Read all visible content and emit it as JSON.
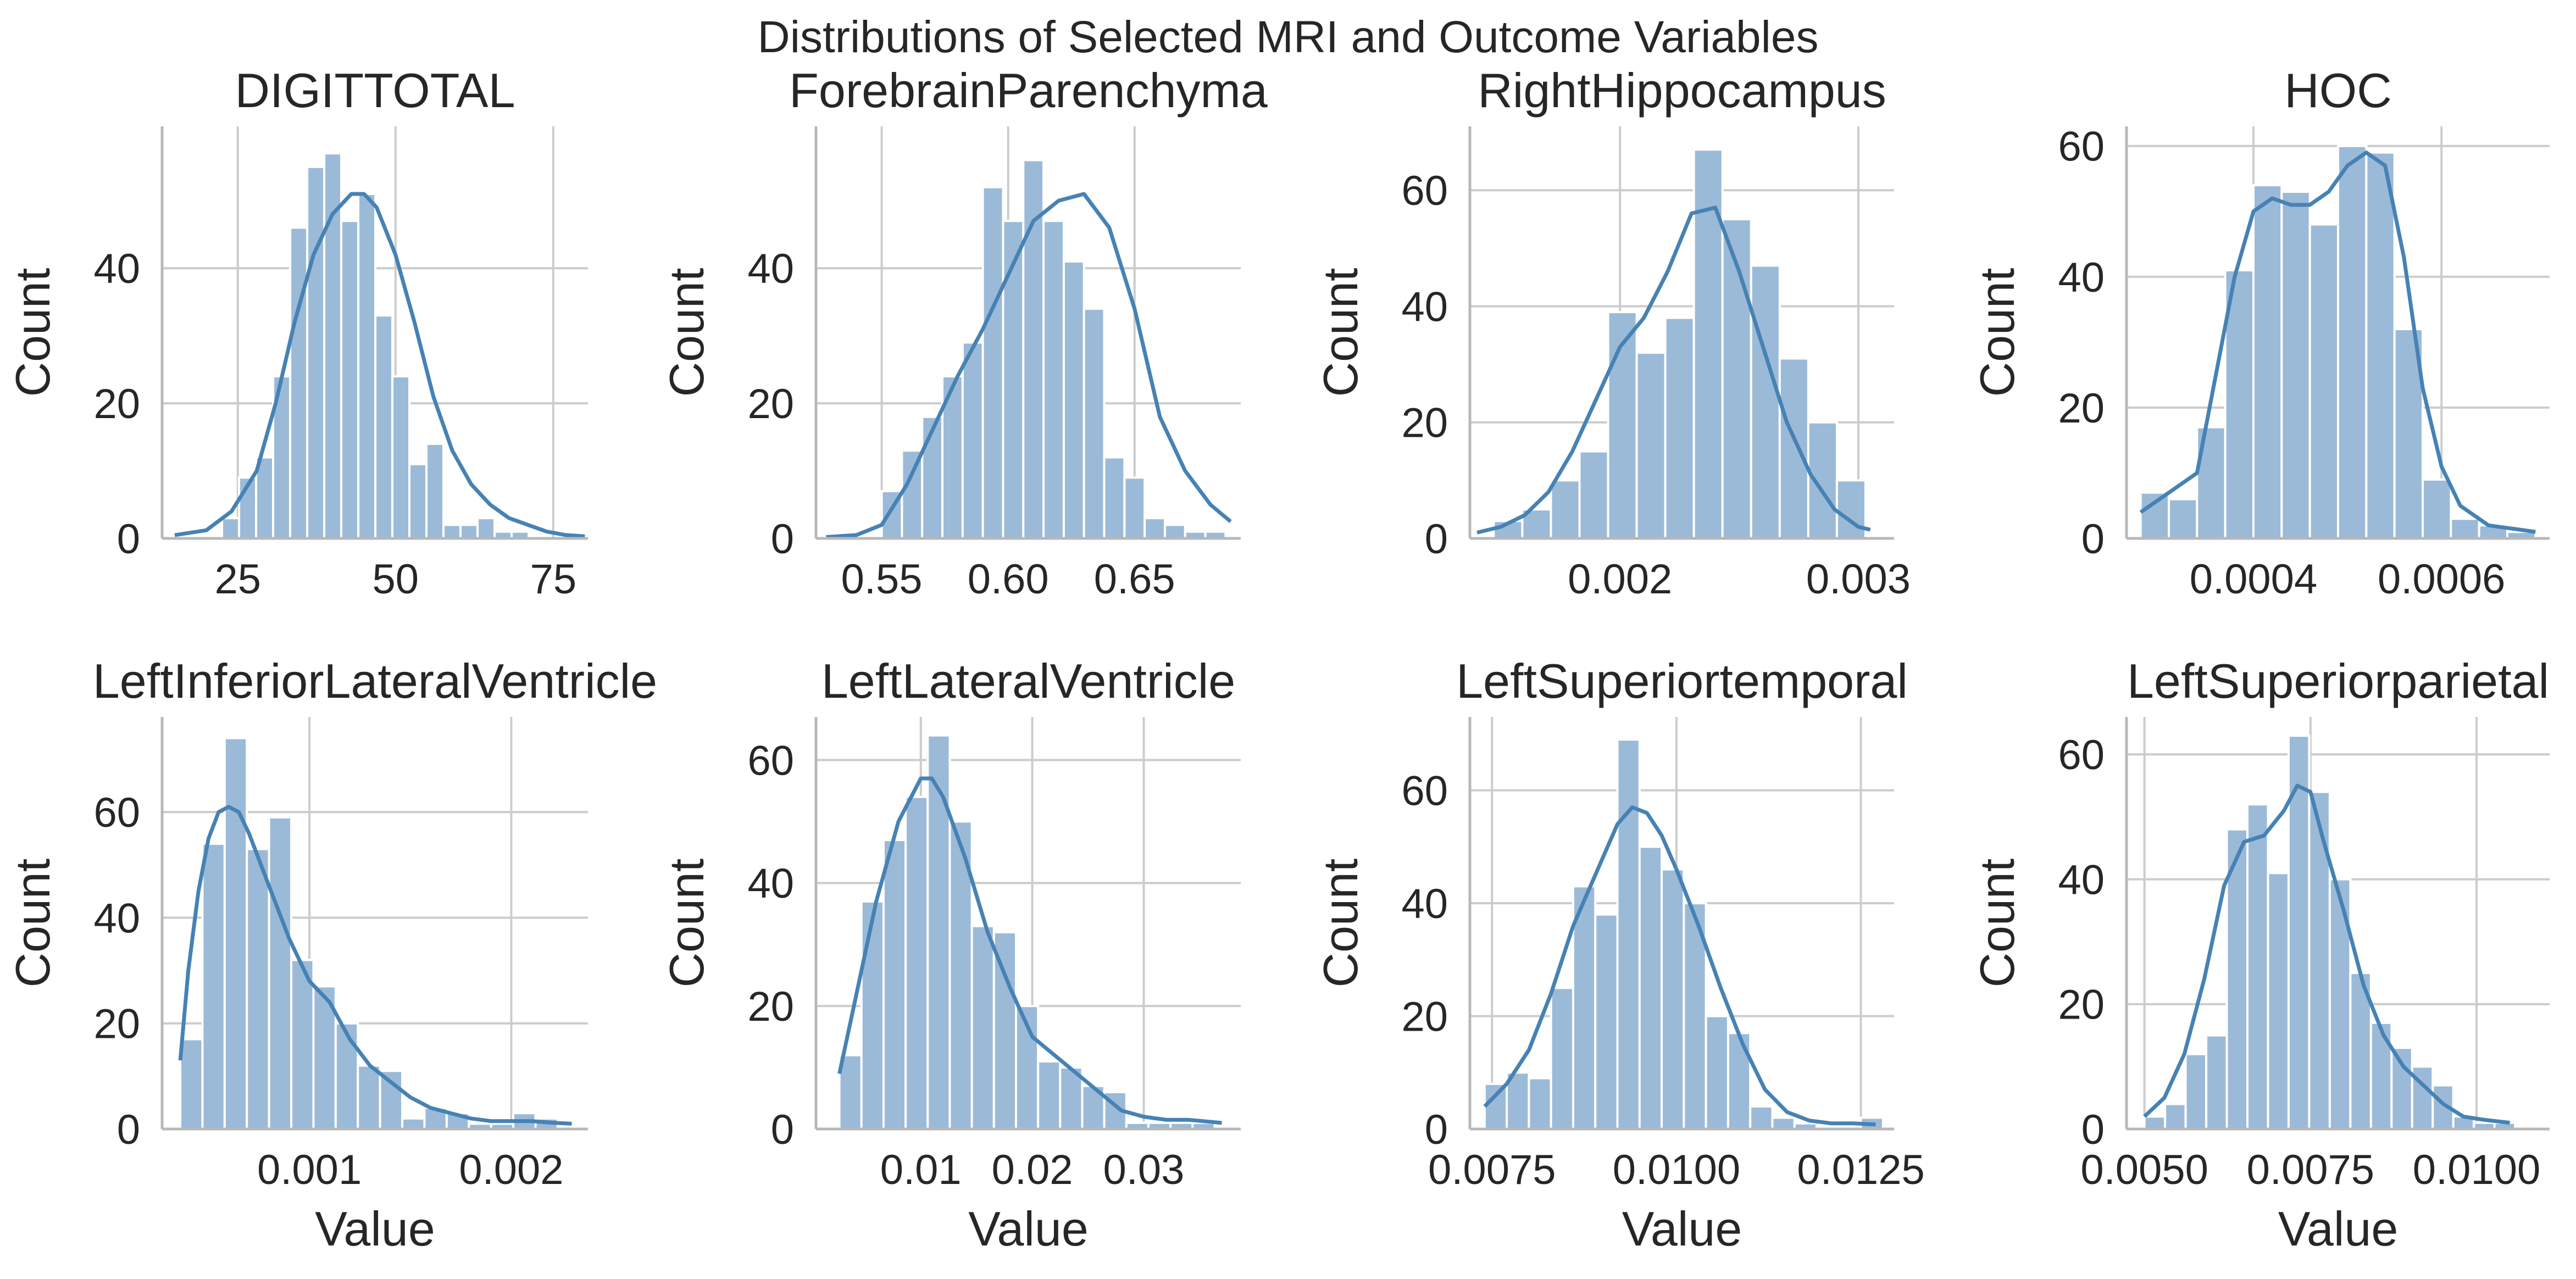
{
  "figure": {
    "title": "Distributions of Selected MRI and Outcome Variables",
    "bar_color": "#9bbad8",
    "kde_color": "#4682b4"
  },
  "chart_data": [
    {
      "type": "histogram",
      "title": "DIGITTOTAL",
      "xlabel": "",
      "ylabel": "Count",
      "xlim": [
        13,
        80.5
      ],
      "ylim": [
        0,
        61
      ],
      "xticks": [
        25,
        50,
        75
      ],
      "xtick_labels": [
        "25",
        "50",
        "75"
      ],
      "yticks": [
        0,
        20,
        40
      ],
      "ytick_labels": [
        "0",
        "20",
        "40"
      ],
      "grid": true,
      "bin_edges": [
        22.5,
        25.2,
        27.9,
        30.6,
        33.3,
        36.0,
        38.7,
        41.4,
        44.1,
        46.8,
        49.5,
        52.2,
        54.9,
        57.6,
        60.3,
        63.0,
        65.7,
        68.4,
        71.1
      ],
      "counts": [
        3,
        9,
        12,
        24,
        46,
        55,
        57,
        47,
        51,
        33,
        24,
        11,
        14,
        2,
        2,
        3,
        1,
        1
      ],
      "kde": {
        "x": [
          15,
          20,
          24,
          28,
          31,
          34,
          37,
          40,
          43,
          45,
          47,
          50,
          53,
          56,
          59,
          62,
          65,
          68,
          71,
          74,
          77,
          80
        ],
        "y": [
          0.5,
          1.2,
          4,
          10,
          20,
          32,
          42,
          48,
          51,
          51,
          49,
          42,
          32,
          21,
          13,
          8,
          5,
          3,
          2,
          1,
          0.5,
          0.3
        ]
      }
    },
    {
      "type": "histogram",
      "title": "ForebrainParenchyma",
      "xlabel": "",
      "ylabel": "Count",
      "xlim": [
        0.524,
        0.692
      ],
      "ylim": [
        0,
        61
      ],
      "xticks": [
        0.55,
        0.6,
        0.65
      ],
      "xtick_labels": [
        "0.55",
        "0.60",
        "0.65"
      ],
      "yticks": [
        0,
        20,
        40
      ],
      "ytick_labels": [
        "0",
        "20",
        "40"
      ],
      "grid": true,
      "bin_edges": [
        0.55,
        0.558,
        0.566,
        0.574,
        0.582,
        0.59,
        0.598,
        0.606,
        0.614,
        0.622,
        0.63,
        0.638,
        0.646,
        0.654,
        0.662,
        0.67,
        0.678,
        0.686
      ],
      "counts": [
        7,
        13,
        18,
        24,
        29,
        52,
        47,
        56,
        47,
        41,
        34,
        12,
        9,
        3,
        2,
        1,
        1
      ],
      "kde": {
        "x": [
          0.528,
          0.54,
          0.55,
          0.56,
          0.57,
          0.58,
          0.59,
          0.6,
          0.61,
          0.62,
          0.63,
          0.64,
          0.65,
          0.66,
          0.67,
          0.68,
          0.688
        ],
        "y": [
          0.2,
          0.5,
          2,
          8,
          16,
          24,
          31,
          39,
          47,
          50,
          51,
          46,
          34,
          18,
          10,
          5,
          2.5
        ]
      }
    },
    {
      "type": "histogram",
      "title": "RightHippocampus",
      "xlabel": "",
      "ylabel": "Count",
      "xlim": [
        0.00137,
        0.00315
      ],
      "ylim": [
        0,
        71
      ],
      "xticks": [
        0.002,
        0.003
      ],
      "xtick_labels": [
        "0.002",
        "0.003"
      ],
      "yticks": [
        0,
        20,
        40,
        60
      ],
      "ytick_labels": [
        "0",
        "20",
        "40",
        "60"
      ],
      "grid": true,
      "bin_edges": [
        0.00147,
        0.00159,
        0.00171,
        0.00183,
        0.00195,
        0.00207,
        0.00219,
        0.00231,
        0.00243,
        0.00255,
        0.00267,
        0.00279,
        0.00291,
        0.00303
      ],
      "counts": [
        3,
        5,
        10,
        15,
        39,
        32,
        38,
        67,
        55,
        47,
        31,
        20,
        10,
        3
      ],
      "kde": {
        "x": [
          0.0014,
          0.0015,
          0.0016,
          0.0017,
          0.0018,
          0.0019,
          0.002,
          0.0021,
          0.0022,
          0.0023,
          0.0024,
          0.0025,
          0.0026,
          0.0027,
          0.0028,
          0.0029,
          0.003,
          0.00305
        ],
        "y": [
          1,
          2,
          4,
          8,
          15,
          24,
          33,
          38,
          46,
          56,
          57,
          46,
          33,
          20,
          11,
          5,
          2,
          1.5
        ]
      }
    },
    {
      "type": "histogram",
      "title": "HOC",
      "xlabel": "",
      "ylabel": "Count",
      "xlim": [
        0.000265,
        0.000715
      ],
      "ylim": [
        0,
        63
      ],
      "xticks": [
        0.0004,
        0.0006
      ],
      "xtick_labels": [
        "0.0004",
        "0.0006"
      ],
      "yticks": [
        0,
        20,
        40,
        60
      ],
      "ytick_labels": [
        "0",
        "20",
        "40",
        "60"
      ],
      "grid": true,
      "bin_edges": [
        0.00028,
        0.00031,
        0.00034,
        0.00037,
        0.0004,
        0.00043,
        0.00046,
        0.00049,
        0.00052,
        0.00055,
        0.00058,
        0.00061,
        0.00064,
        0.00067,
        0.0007
      ],
      "counts": [
        7,
        6,
        17,
        41,
        54,
        53,
        48,
        60,
        59,
        32,
        9,
        3,
        2,
        1
      ],
      "kde": {
        "x": [
          0.00028,
          0.00031,
          0.00034,
          0.00036,
          0.00038,
          0.0004,
          0.00042,
          0.00044,
          0.00046,
          0.00048,
          0.0005,
          0.00052,
          0.00054,
          0.00056,
          0.00058,
          0.0006,
          0.00062,
          0.00065,
          0.0007
        ],
        "y": [
          4,
          7,
          10,
          25,
          40,
          50,
          52,
          51,
          51,
          53,
          57,
          59,
          57,
          43,
          23,
          11,
          5,
          2,
          1
        ]
      }
    },
    {
      "type": "histogram",
      "title": "LeftInferiorLateralVentricle",
      "xlabel": "Value",
      "ylabel": "Count",
      "xlim": [
        0.00027,
        0.00238
      ],
      "ylim": [
        0,
        78
      ],
      "xticks": [
        0.001,
        0.002
      ],
      "xtick_labels": [
        "0.001",
        "0.002"
      ],
      "yticks": [
        0,
        20,
        40,
        60
      ],
      "ytick_labels": [
        "0",
        "20",
        "40",
        "60"
      ],
      "grid": true,
      "bin_edges": [
        0.00036,
        0.00047,
        0.00058,
        0.00069,
        0.0008,
        0.00091,
        0.00102,
        0.00113,
        0.00124,
        0.00135,
        0.00146,
        0.00157,
        0.00168,
        0.00179,
        0.0019,
        0.00201,
        0.00212,
        0.00223
      ],
      "counts": [
        17,
        54,
        74,
        53,
        59,
        32,
        27,
        20,
        12,
        11,
        2,
        4,
        3,
        1,
        1,
        3,
        2
      ],
      "kde": {
        "x": [
          0.00036,
          0.0004,
          0.00045,
          0.0005,
          0.00055,
          0.0006,
          0.00065,
          0.0007,
          0.0008,
          0.0009,
          0.001,
          0.0011,
          0.0012,
          0.0013,
          0.0014,
          0.0015,
          0.0016,
          0.0017,
          0.0018,
          0.0019,
          0.002,
          0.0021,
          0.0022,
          0.0023
        ],
        "y": [
          13,
          30,
          45,
          55,
          60,
          61,
          60,
          56,
          46,
          36,
          28,
          24,
          17,
          12,
          9,
          6,
          4,
          3,
          2,
          1.5,
          1.5,
          1.5,
          1.2,
          1
        ]
      }
    },
    {
      "type": "histogram",
      "title": "LeftLateralVentricle",
      "xlabel": "Value",
      "ylabel": "Count",
      "xlim": [
        0.0006,
        0.0387
      ],
      "ylim": [
        0,
        67
      ],
      "xticks": [
        0.01,
        0.02,
        0.03
      ],
      "xtick_labels": [
        "0.01",
        "0.02",
        "0.03"
      ],
      "yticks": [
        0,
        20,
        40,
        60
      ],
      "ytick_labels": [
        "0",
        "20",
        "40",
        "60"
      ],
      "grid": true,
      "bin_edges": [
        0.0027,
        0.00468,
        0.00666,
        0.00864,
        0.01062,
        0.0126,
        0.01458,
        0.01656,
        0.01854,
        0.02052,
        0.0225,
        0.02448,
        0.02646,
        0.02844,
        0.03042,
        0.0324,
        0.03438,
        0.03636
      ],
      "counts": [
        12,
        37,
        47,
        54,
        64,
        50,
        33,
        32,
        20,
        11,
        10,
        7,
        6,
        1,
        1,
        1,
        1
      ],
      "kde": {
        "x": [
          0.0027,
          0.004,
          0.006,
          0.008,
          0.01,
          0.011,
          0.012,
          0.014,
          0.016,
          0.018,
          0.02,
          0.022,
          0.024,
          0.026,
          0.028,
          0.03,
          0.032,
          0.034,
          0.037
        ],
        "y": [
          9,
          20,
          37,
          50,
          57,
          57,
          54,
          44,
          32,
          23,
          15,
          12,
          9,
          6,
          3,
          2,
          1.5,
          1.5,
          1
        ]
      }
    },
    {
      "type": "histogram",
      "title": "LeftSuperiortemporal",
      "xlabel": "Value",
      "ylabel": "Count",
      "xlim": [
        0.0072,
        0.01295
      ],
      "ylim": [
        0,
        73
      ],
      "xticks": [
        0.0075,
        0.01,
        0.0125
      ],
      "xtick_labels": [
        "0.0075",
        "0.0100",
        "0.0125"
      ],
      "yticks": [
        0,
        20,
        40,
        60
      ],
      "ytick_labels": [
        "0",
        "20",
        "40",
        "60"
      ],
      "grid": true,
      "bin_edges": [
        0.0074,
        0.0077,
        0.008,
        0.0083,
        0.0086,
        0.0089,
        0.0092,
        0.0095,
        0.0098,
        0.0101,
        0.0104,
        0.0107,
        0.011,
        0.0113,
        0.0116,
        0.0119,
        0.0122,
        0.0125,
        0.0128
      ],
      "counts": [
        8,
        10,
        9,
        25,
        43,
        38,
        69,
        50,
        46,
        40,
        20,
        17,
        4,
        2,
        1,
        0,
        0,
        2
      ],
      "kde": {
        "x": [
          0.0074,
          0.0077,
          0.008,
          0.0083,
          0.0086,
          0.0089,
          0.0092,
          0.0094,
          0.0096,
          0.0098,
          0.01,
          0.0103,
          0.0106,
          0.0109,
          0.0112,
          0.0115,
          0.0118,
          0.0121,
          0.0124,
          0.0127
        ],
        "y": [
          4,
          8,
          14,
          24,
          36,
          45,
          54,
          57,
          56,
          52,
          46,
          36,
          25,
          15,
          7,
          3,
          1.5,
          1,
          1,
          0.8
        ]
      }
    },
    {
      "type": "histogram",
      "title": "LeftSuperiorparietal",
      "xlabel": "Value",
      "ylabel": "Count",
      "xlim": [
        0.00473,
        0.0111
      ],
      "ylim": [
        0,
        66
      ],
      "xticks": [
        0.005,
        0.0075,
        0.01
      ],
      "xtick_labels": [
        "0.0050",
        "0.0075",
        "0.0100"
      ],
      "yticks": [
        0,
        20,
        40,
        60
      ],
      "ytick_labels": [
        "0",
        "20",
        "40",
        "60"
      ],
      "grid": true,
      "bin_edges": [
        0.005,
        0.00531,
        0.00562,
        0.00593,
        0.00624,
        0.00655,
        0.00686,
        0.00717,
        0.00748,
        0.00779,
        0.0081,
        0.00841,
        0.00872,
        0.00903,
        0.00934,
        0.00965,
        0.00996,
        0.01027,
        0.01058
      ],
      "counts": [
        2,
        4,
        12,
        15,
        48,
        52,
        41,
        63,
        54,
        40,
        25,
        17,
        13,
        10,
        7,
        2,
        1,
        1
      ],
      "kde": {
        "x": [
          0.005,
          0.0053,
          0.0056,
          0.0059,
          0.0062,
          0.0065,
          0.0068,
          0.0071,
          0.0073,
          0.0075,
          0.0077,
          0.008,
          0.0083,
          0.0086,
          0.0089,
          0.0092,
          0.0095,
          0.0098,
          0.0101,
          0.0105
        ],
        "y": [
          2,
          5,
          12,
          24,
          39,
          46,
          47,
          51,
          55,
          54,
          46,
          35,
          23,
          15,
          10,
          7,
          4,
          2,
          1.5,
          1
        ]
      }
    }
  ]
}
